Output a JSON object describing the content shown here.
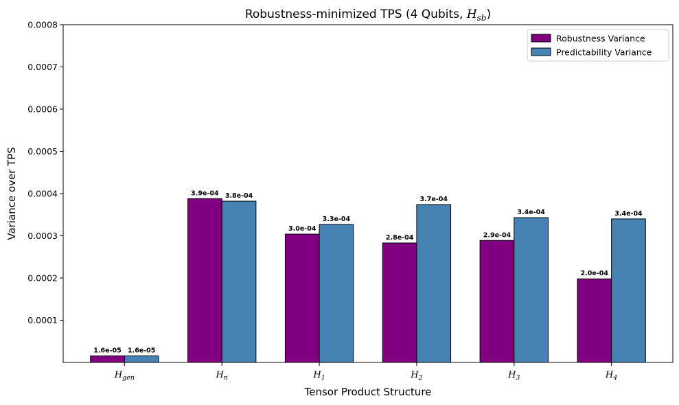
{
  "chart_data": {
    "type": "bar",
    "title": "Robustness-minimized TPS (4 Qubits, H_sb)",
    "title_parts": {
      "prefix": "Robustness-minimized TPS (4 Qubits, ",
      "symbol": "H",
      "sub": "sb",
      "suffix": ")"
    },
    "xlabel": "Tensor Product Structure",
    "ylabel": "Variance over TPS",
    "categories": [
      {
        "symbol": "H",
        "sub": "gen"
      },
      {
        "symbol": "H",
        "sub": "n"
      },
      {
        "symbol": "H",
        "sub": "1"
      },
      {
        "symbol": "H",
        "sub": "2"
      },
      {
        "symbol": "H",
        "sub": "3"
      },
      {
        "symbol": "H",
        "sub": "4"
      }
    ],
    "series": [
      {
        "name": "Robustness Variance",
        "color": "#800080",
        "values": [
          1.57e-05,
          0.000388,
          0.000304,
          0.000283,
          0.000289,
          0.000198
        ],
        "labels": [
          "1.6e-05",
          "3.9e-04",
          "3.0e-04",
          "2.8e-04",
          "2.9e-04",
          "2.0e-04"
        ]
      },
      {
        "name": "Predictability Variance",
        "color": "#4682b4",
        "values": [
          1.57e-05,
          0.000382,
          0.000327,
          0.000374,
          0.000343,
          0.00034
        ],
        "labels": [
          "1.6e-05",
          "3.8e-04",
          "3.3e-04",
          "3.7e-04",
          "3.4e-04",
          "3.4e-04"
        ]
      }
    ],
    "ylim": [
      0,
      0.0008
    ],
    "yticks": [
      "0.0001",
      "0.0002",
      "0.0003",
      "0.0004",
      "0.0005",
      "0.0006",
      "0.0007",
      "0.0008"
    ],
    "legend_position": "top-right",
    "grid": false
  }
}
